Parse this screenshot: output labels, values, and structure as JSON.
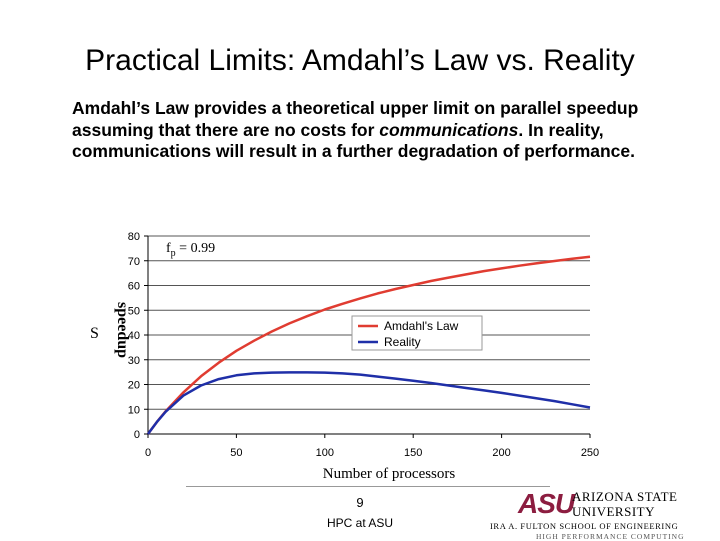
{
  "slide": {
    "title": "Practical Limits: Amdahl’s Law vs. Reality",
    "body_part1": "Amdahl’s Law provides a theoretical upper limit on parallel speedup assuming that there are no costs for ",
    "body_em": "communications",
    "body_part2": ". In reality, communications will result in a further degradation of performance."
  },
  "chart_data": {
    "type": "line",
    "xlabel": "Number of processors",
    "ylabel": "S",
    "ylabel_extra": "speedup",
    "xlim": [
      0,
      250
    ],
    "ylim": [
      0,
      80
    ],
    "xticks": [
      0,
      50,
      100,
      150,
      200,
      250
    ],
    "yticks": [
      0,
      10,
      20,
      30,
      40,
      50,
      60,
      70,
      80
    ],
    "grid": "horizontal",
    "legend_position": "center-right",
    "annotation": {
      "prefix": "f",
      "subscript": "p",
      "text": " = 0.99"
    },
    "series": [
      {
        "name": "Amdahl's Law",
        "color": "#e03c31",
        "x": [
          0,
          1,
          5,
          10,
          20,
          30,
          40,
          50,
          60,
          70,
          80,
          90,
          100,
          110,
          120,
          130,
          140,
          150,
          160,
          170,
          180,
          190,
          200,
          210,
          220,
          230,
          240,
          250
        ],
        "y": [
          0,
          1.0,
          4.8,
          9.2,
          16.8,
          23.3,
          28.8,
          33.6,
          37.7,
          41.4,
          44.7,
          47.6,
          50.3,
          52.6,
          54.8,
          56.8,
          58.6,
          60.2,
          61.8,
          63.2,
          64.5,
          65.8,
          66.9,
          68.0,
          69.0,
          69.9,
          70.8,
          71.6
        ]
      },
      {
        "name": "Reality",
        "color": "#1f2fa8",
        "x": [
          0,
          1,
          5,
          10,
          20,
          30,
          40,
          50,
          60,
          70,
          80,
          90,
          100,
          110,
          120,
          130,
          140,
          150,
          160,
          170,
          180,
          190,
          200,
          210,
          220,
          230,
          240,
          250
        ],
        "y": [
          0,
          1.0,
          4.8,
          9.0,
          15.5,
          19.6,
          22.2,
          23.7,
          24.5,
          24.8,
          24.9,
          24.9,
          24.8,
          24.5,
          24.0,
          23.2,
          22.4,
          21.5,
          20.6,
          19.6,
          18.6,
          17.6,
          16.6,
          15.5,
          14.4,
          13.3,
          12.0,
          10.7
        ]
      }
    ]
  },
  "footer": {
    "page_number": "9",
    "label": "HPC at ASU"
  },
  "logo": {
    "mark": "ASU",
    "name_line1": "ARIZONA STATE",
    "name_line2": "UNIVERSITY",
    "school": "IRA A. FULTON SCHOOL OF ENGINEERING",
    "subtitle": "HIGH PERFORMANCE COMPUTING"
  }
}
